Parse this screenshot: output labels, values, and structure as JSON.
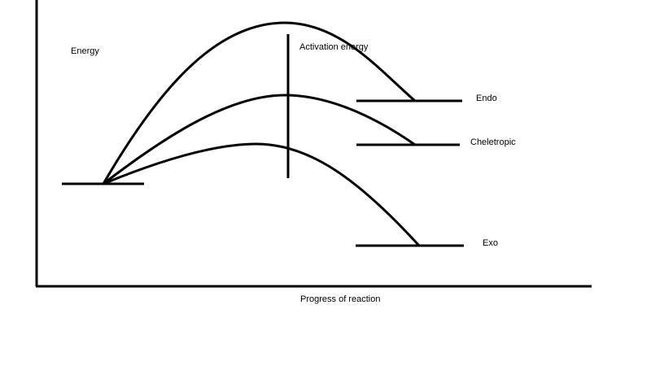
{
  "diagram": {
    "y_axis_label": "Energy",
    "x_axis_label": "Progress of reaction",
    "activation_label": "Activation energy",
    "products": [
      {
        "key": "endo",
        "label": "Endo"
      },
      {
        "key": "cheletropic",
        "label": "Cheletropic"
      },
      {
        "key": "exo",
        "label": "Exo"
      }
    ]
  },
  "colors": {
    "line": "#000000",
    "background": "#ffffff"
  }
}
